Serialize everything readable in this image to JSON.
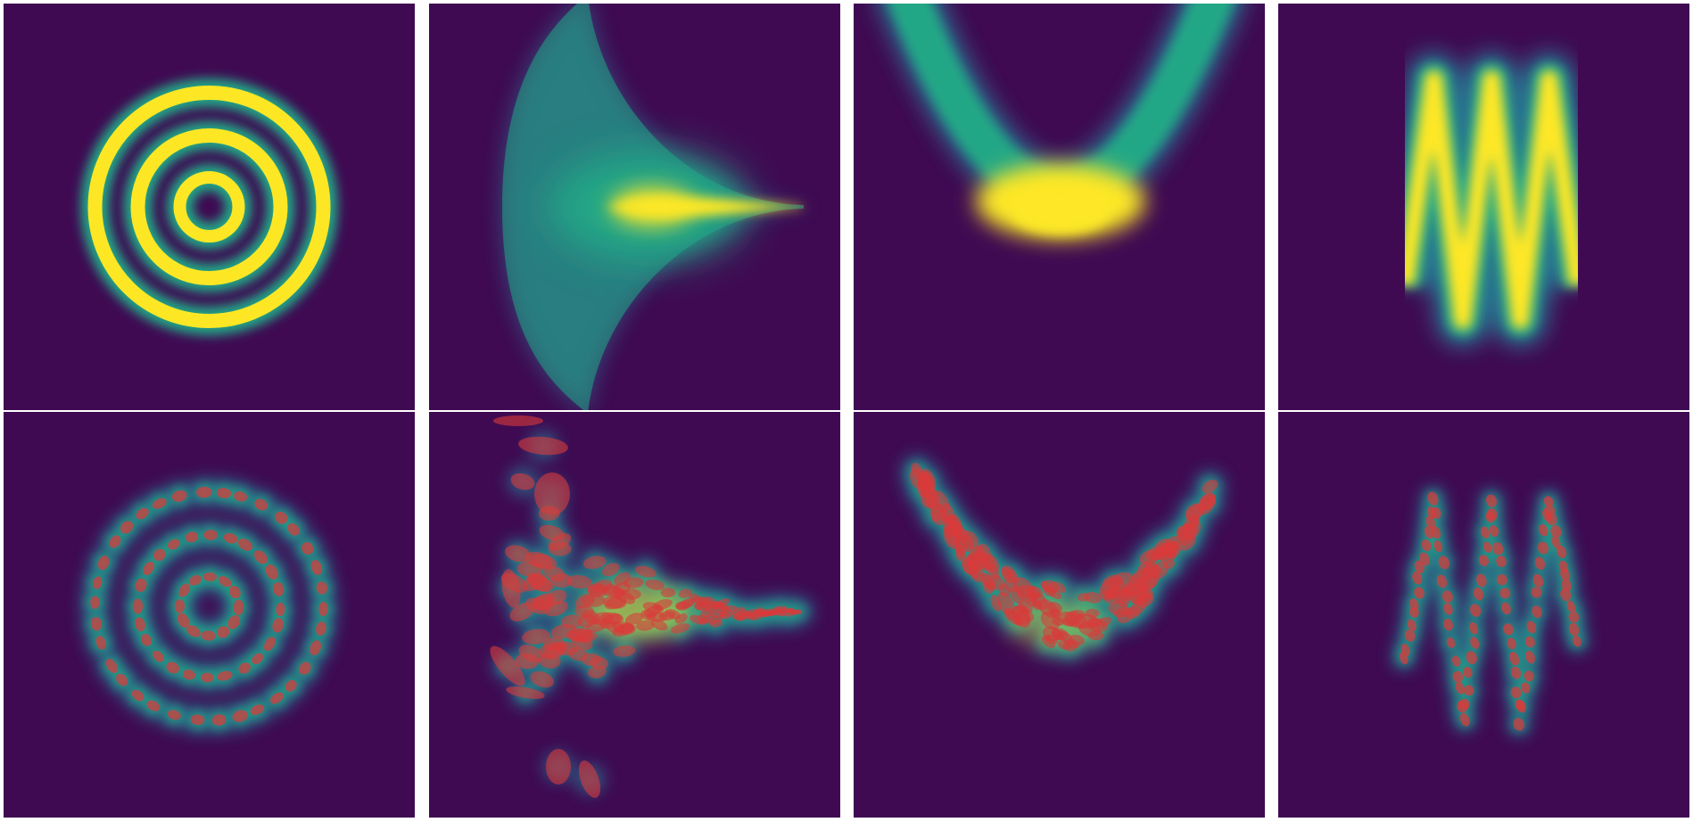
{
  "figure": {
    "columns": [
      {
        "id": "rings",
        "shape": "concentric-rings"
      },
      {
        "id": "funnel",
        "shape": "horizontal-funnel"
      },
      {
        "id": "banana",
        "shape": "parabolic-banana"
      },
      {
        "id": "zigzag",
        "shape": "zigzag-wave"
      }
    ],
    "rows": [
      "target-density",
      "gaussian-mixture-fit"
    ],
    "colors": {
      "background": "#3f0a52",
      "separator": "#ffffff",
      "density_low": "#2c6f8e",
      "density_mid": "#21a786",
      "density_high": "#fde725",
      "ellipse_fill": "#d93a3a"
    }
  }
}
